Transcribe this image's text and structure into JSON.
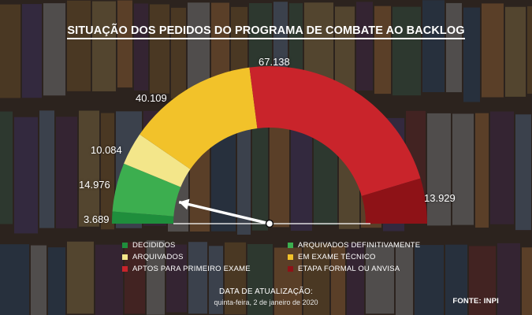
{
  "chart_data": {
    "type": "gauge",
    "title": "SITUAÇÃO DOS PEDIDOS DO PROGRAMA DE COMBATE AO BACKLOG",
    "series": [
      {
        "name": "DECIDIDOS",
        "value": 3689,
        "label": "3.689",
        "color": "#1f8e3c"
      },
      {
        "name": "ARQUIVADOS DEFINITIVAMENTE",
        "value": 14976,
        "label": "14.976",
        "color": "#3cae4f"
      },
      {
        "name": "ARQUIVADOS",
        "value": 10084,
        "label": "10.084",
        "color": "#f3e68a"
      },
      {
        "name": "EM EXAME TÉCNICO",
        "value": 40109,
        "label": "40.109",
        "color": "#f2c22a"
      },
      {
        "name": "APTOS PARA PRIMEIRO EXAME",
        "value": 67138,
        "label": "67.138",
        "color": "#c9242b"
      },
      {
        "name": "ETAPA FORMAL OU ANVISA",
        "value": 13929,
        "label": "13.929",
        "color": "#8e1217"
      }
    ],
    "pointer_at_category": "ARQUIVADOS DEFINITIVAMENTE"
  },
  "legend": [
    {
      "label": "DECIDIDOS",
      "color": "#1f8e3c"
    },
    {
      "label": "ARQUIVADOS DEFINITIVAMENTE",
      "color": "#3cae4f"
    },
    {
      "label": "ARQUIVADOS",
      "color": "#f3e68a"
    },
    {
      "label": "EM EXAME TÉCNICO",
      "color": "#f2c22a"
    },
    {
      "label": "APTOS PARA PRIMEIRO EXAME",
      "color": "#c9242b"
    },
    {
      "label": "ETAPA FORMAL OU ANVISA",
      "color": "#8e1217"
    }
  ],
  "footer": {
    "update_label": "DATA DE ATUALIZAÇÃO:",
    "update_date": "quinta-feira, 2 de janeiro de 2020",
    "source": "FONTE: INPI"
  }
}
